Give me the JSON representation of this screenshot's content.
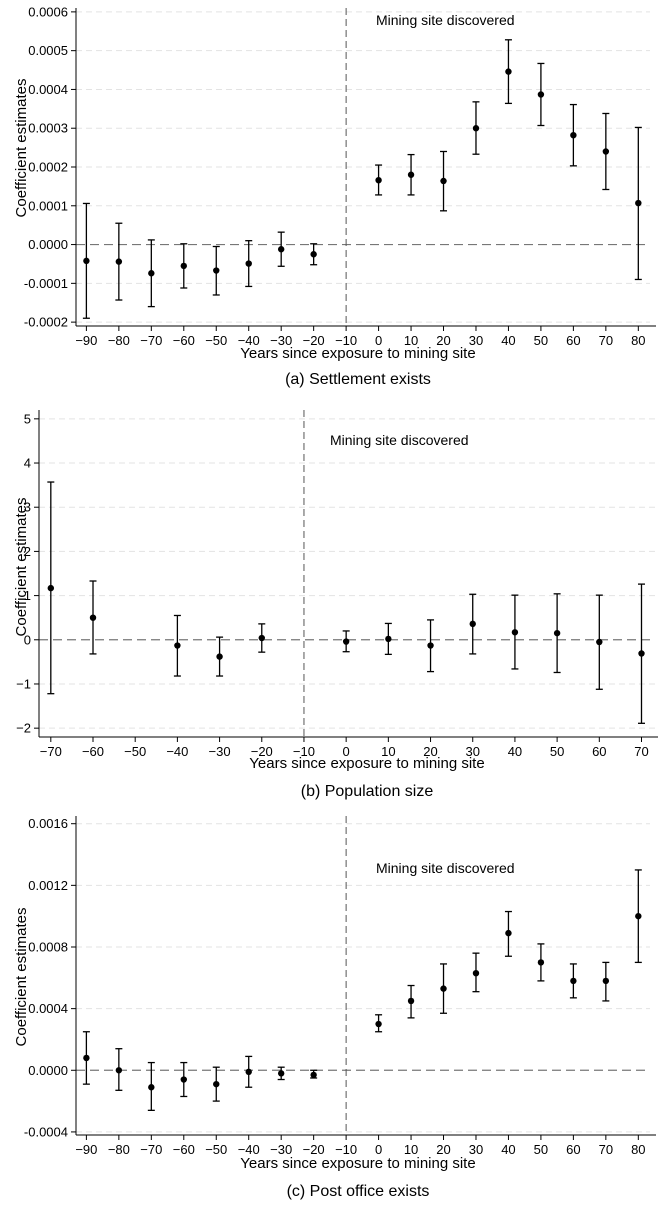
{
  "chart_data": [
    {
      "type": "scatter",
      "subtype": "coefficient-plot-with-95ci",
      "caption": "(a) Settlement exists",
      "xlabel": "Years since exposure to mining site",
      "ylabel": "Coefficient estimates",
      "annotation": "Mining site discovered",
      "annotation_x": -10,
      "xlim": [
        -90,
        80
      ],
      "ylim": [
        -0.00021,
        0.00061
      ],
      "xticks": [
        -90,
        -80,
        -70,
        -60,
        -50,
        -40,
        -30,
        -20,
        -10,
        0,
        10,
        20,
        30,
        40,
        50,
        60,
        70,
        80
      ],
      "xtick_labels": [
        "−90",
        "−80",
        "−70",
        "−60",
        "−50",
        "−40",
        "−30",
        "−20",
        "−10",
        "0",
        "10",
        "20",
        "30",
        "40",
        "50",
        "60",
        "70",
        "80"
      ],
      "yticks": [
        -0.0002,
        -0.0001,
        0,
        0.0001,
        0.0002,
        0.0003,
        0.0004,
        0.0005,
        0.0006
      ],
      "ytick_labels": [
        "-0.0002",
        "-0.0001",
        "0.0000",
        "0.0001",
        "0.0002",
        "0.0003",
        "0.0004",
        "0.0005",
        "0.0006"
      ],
      "grid": "horizontal-dashed",
      "zero_line": true,
      "points": [
        {
          "x": -90,
          "y": -4.2e-05,
          "lo": -0.00019,
          "hi": 0.000106
        },
        {
          "x": -80,
          "y": -4.4e-05,
          "lo": -0.000143,
          "hi": 5.5e-05
        },
        {
          "x": -70,
          "y": -7.4e-05,
          "lo": -0.00016,
          "hi": 1.2e-05
        },
        {
          "x": -60,
          "y": -5.5e-05,
          "lo": -0.000112,
          "hi": 2e-06
        },
        {
          "x": -50,
          "y": -6.7e-05,
          "lo": -0.00013,
          "hi": -5e-06
        },
        {
          "x": -40,
          "y": -4.9e-05,
          "lo": -0.000108,
          "hi": 1e-05
        },
        {
          "x": -30,
          "y": -1.2e-05,
          "lo": -5.6e-05,
          "hi": 3.2e-05
        },
        {
          "x": -20,
          "y": -2.5e-05,
          "lo": -5.2e-05,
          "hi": 2e-06
        },
        {
          "x": 0,
          "y": 0.000166,
          "lo": 0.000128,
          "hi": 0.000205
        },
        {
          "x": 10,
          "y": 0.00018,
          "lo": 0.000128,
          "hi": 0.000232
        },
        {
          "x": 20,
          "y": 0.000164,
          "lo": 8.7e-05,
          "hi": 0.00024
        },
        {
          "x": 30,
          "y": 0.0003,
          "lo": 0.000233,
          "hi": 0.000368
        },
        {
          "x": 40,
          "y": 0.000446,
          "lo": 0.000364,
          "hi": 0.000528
        },
        {
          "x": 50,
          "y": 0.000387,
          "lo": 0.000307,
          "hi": 0.000467
        },
        {
          "x": 60,
          "y": 0.000282,
          "lo": 0.000203,
          "hi": 0.000361
        },
        {
          "x": 70,
          "y": 0.00024,
          "lo": 0.000142,
          "hi": 0.000338
        },
        {
          "x": 80,
          "y": 0.000107,
          "lo": -9e-05,
          "hi": 0.000302
        }
      ]
    },
    {
      "type": "scatter",
      "subtype": "coefficient-plot-with-95ci",
      "caption": "(b) Population size",
      "xlabel": "Years since exposure to mining site",
      "ylabel": "Coefficient estimates",
      "annotation": "Mining site discovered",
      "annotation_x": -10,
      "xlim": [
        -70,
        70
      ],
      "ylim": [
        -2.2,
        5.2
      ],
      "xticks": [
        -70,
        -60,
        -50,
        -40,
        -30,
        -20,
        -10,
        0,
        10,
        20,
        30,
        40,
        50,
        60,
        70
      ],
      "xtick_labels": [
        "−70",
        "−60",
        "−50",
        "−40",
        "−30",
        "−20",
        "−10",
        "0",
        "10",
        "20",
        "30",
        "40",
        "50",
        "60",
        "70"
      ],
      "yticks": [
        -2,
        -1,
        0,
        1,
        2,
        3,
        4,
        5
      ],
      "ytick_labels": [
        "−2",
        "−1",
        "0",
        "1",
        "2",
        "3",
        "4",
        "5"
      ],
      "grid": "horizontal-dashed",
      "zero_line": true,
      "points": [
        {
          "x": -70,
          "y": 1.17,
          "lo": -1.22,
          "hi": 3.57
        },
        {
          "x": -60,
          "y": 0.5,
          "lo": -0.32,
          "hi": 1.33
        },
        {
          "x": -40,
          "y": -0.13,
          "lo": -0.82,
          "hi": 0.55
        },
        {
          "x": -30,
          "y": -0.38,
          "lo": -0.82,
          "hi": 0.06
        },
        {
          "x": -20,
          "y": 0.04,
          "lo": -0.28,
          "hi": 0.36
        },
        {
          "x": 0,
          "y": -0.04,
          "lo": -0.27,
          "hi": 0.2
        },
        {
          "x": 10,
          "y": 0.02,
          "lo": -0.33,
          "hi": 0.37
        },
        {
          "x": 20,
          "y": -0.13,
          "lo": -0.72,
          "hi": 0.45
        },
        {
          "x": 30,
          "y": 0.36,
          "lo": -0.32,
          "hi": 1.03
        },
        {
          "x": 40,
          "y": 0.17,
          "lo": -0.66,
          "hi": 1.01
        },
        {
          "x": 50,
          "y": 0.15,
          "lo": -0.74,
          "hi": 1.04
        },
        {
          "x": 60,
          "y": -0.05,
          "lo": -1.12,
          "hi": 1.01
        },
        {
          "x": 70,
          "y": -0.31,
          "lo": -1.89,
          "hi": 1.26
        }
      ]
    },
    {
      "type": "scatter",
      "subtype": "coefficient-plot-with-95ci",
      "caption": "(c) Post office exists",
      "xlabel": "Years since exposure to mining site",
      "ylabel": "Coefficient estimates",
      "annotation": "Mining site discovered",
      "annotation_x": -10,
      "xlim": [
        -90,
        80
      ],
      "ylim": [
        -0.00042,
        0.00165
      ],
      "xticks": [
        -90,
        -80,
        -70,
        -60,
        -50,
        -40,
        -30,
        -20,
        -10,
        0,
        10,
        20,
        30,
        40,
        50,
        60,
        70,
        80
      ],
      "xtick_labels": [
        "−90",
        "−80",
        "−70",
        "−60",
        "−50",
        "−40",
        "−30",
        "−20",
        "−10",
        "0",
        "10",
        "20",
        "30",
        "40",
        "50",
        "60",
        "70",
        "80"
      ],
      "yticks": [
        -0.0004,
        0,
        0.0004,
        0.0008,
        0.0012,
        0.0016
      ],
      "ytick_labels": [
        "-0.0004",
        "0.0000",
        "0.0004",
        "0.0008",
        "0.0012",
        "0.0016"
      ],
      "grid": "horizontal-dashed",
      "zero_line": true,
      "points": [
        {
          "x": -90,
          "y": 8e-05,
          "lo": -9e-05,
          "hi": 0.00025
        },
        {
          "x": -80,
          "y": 0.0,
          "lo": -0.00013,
          "hi": 0.00014
        },
        {
          "x": -70,
          "y": -0.00011,
          "lo": -0.00026,
          "hi": 5e-05
        },
        {
          "x": -60,
          "y": -6e-05,
          "lo": -0.00017,
          "hi": 5e-05
        },
        {
          "x": -50,
          "y": -9e-05,
          "lo": -0.0002,
          "hi": 2e-05
        },
        {
          "x": -40,
          "y": -1e-05,
          "lo": -0.00011,
          "hi": 9e-05
        },
        {
          "x": -30,
          "y": -2e-05,
          "lo": -6e-05,
          "hi": 2e-05
        },
        {
          "x": -20,
          "y": -3e-05,
          "lo": -5e-05,
          "hi": 0.0
        },
        {
          "x": 0,
          "y": 0.0003,
          "lo": 0.00025,
          "hi": 0.00036
        },
        {
          "x": 10,
          "y": 0.00045,
          "lo": 0.00034,
          "hi": 0.00055
        },
        {
          "x": 20,
          "y": 0.00053,
          "lo": 0.00037,
          "hi": 0.00069
        },
        {
          "x": 30,
          "y": 0.00063,
          "lo": 0.00051,
          "hi": 0.00076
        },
        {
          "x": 40,
          "y": 0.00089,
          "lo": 0.00074,
          "hi": 0.00103
        },
        {
          "x": 50,
          "y": 0.0007,
          "lo": 0.00058,
          "hi": 0.00082
        },
        {
          "x": 60,
          "y": 0.00058,
          "lo": 0.00047,
          "hi": 0.00069
        },
        {
          "x": 70,
          "y": 0.00058,
          "lo": 0.00045,
          "hi": 0.0007
        },
        {
          "x": 80,
          "y": 0.001,
          "lo": 0.0007,
          "hi": 0.0013
        }
      ]
    }
  ]
}
